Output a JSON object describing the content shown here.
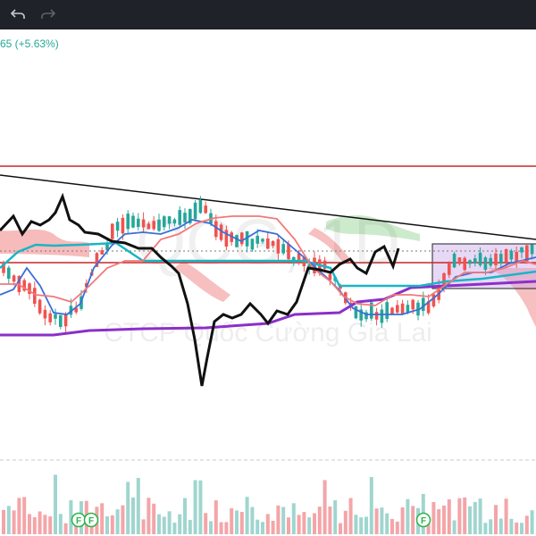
{
  "toolbar": {
    "undo_icon": "undo-icon",
    "redo_icon": "redo-icon"
  },
  "ticker": {
    "change_text": "65 (+5.63%)"
  },
  "watermark": {
    "symbol": "QCG, 1D",
    "company": "CTCP Quốc Cường Gia Lai"
  },
  "events": {
    "flags": [
      "F",
      "F",
      "F"
    ]
  },
  "colors": {
    "toolbar_bg": "#1f2229",
    "up": "#26a69a",
    "down": "#ef5350",
    "up_volume": "#9fd6cf",
    "down_volume": "#f4a5a8",
    "tenkan": "#3a6fd8",
    "kijun": "#f2787a",
    "chikou": "#111111",
    "baseline_cyan": "#19b5c6",
    "baseline_purple": "#8b2fc9",
    "resistance": "#c62828",
    "trendline": "#111111",
    "consolidation_box": "#c9a8e8",
    "cloud_red": "#f4a4a4",
    "cloud_green": "#bfe6bf",
    "flag": "#2bb34a"
  },
  "chart_data": {
    "type": "candlestick",
    "title": "",
    "symbol": "QCG",
    "interval": "1D",
    "change_text": "65 (+5.63%)",
    "overlays": [
      "ichimoku cloud",
      "trendline",
      "horizontal resistance",
      "consolidation box",
      "volume"
    ],
    "events": [
      "F",
      "F",
      "F"
    ]
  }
}
